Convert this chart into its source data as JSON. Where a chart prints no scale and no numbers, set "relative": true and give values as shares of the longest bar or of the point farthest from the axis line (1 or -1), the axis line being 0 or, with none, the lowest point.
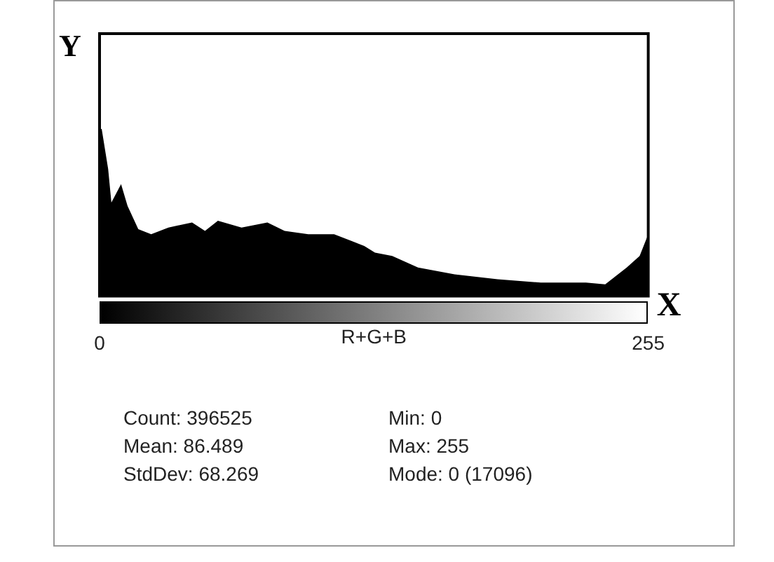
{
  "chart_data": {
    "type": "area",
    "relative": true,
    "color": "#000000",
    "ylabel": "Y",
    "xlabel": "R+G+B",
    "x": [
      0,
      1,
      4,
      5.5,
      10,
      13,
      18,
      24,
      32,
      43,
      49,
      55,
      66,
      78,
      86,
      97,
      109,
      117,
      123,
      128,
      136,
      148,
      165,
      185,
      205,
      226,
      235,
      245,
      251,
      255
    ],
    "values": [
      1.0,
      1.0,
      0.76,
      0.56,
      0.67,
      0.54,
      0.4,
      0.37,
      0.41,
      0.44,
      0.39,
      0.45,
      0.41,
      0.44,
      0.39,
      0.37,
      0.37,
      0.33,
      0.3,
      0.26,
      0.24,
      0.17,
      0.13,
      0.1,
      0.08,
      0.08,
      0.07,
      0.17,
      0.24,
      0.37
    ],
    "xlim": [
      0,
      255
    ],
    "xticks": [
      0,
      255
    ],
    "annotations": [
      "X",
      "Count: 396525",
      "Mean: 86.489",
      "StdDev: 68.269",
      "Min: 0",
      "Max: 255",
      "Mode: 0 (17096)"
    ]
  }
}
